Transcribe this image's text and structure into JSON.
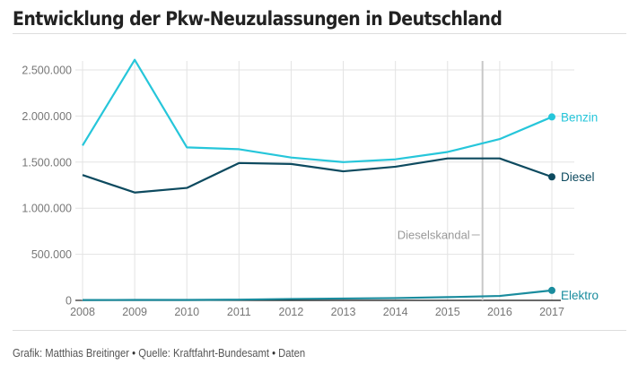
{
  "header": {
    "title": "Entwicklung der Pkw-Neuzulassungen in Deutschland"
  },
  "footer": {
    "grafik_label": "Grafik: Matthias Breitinger",
    "sep1": " • ",
    "quelle_prefix": "Quelle: ",
    "quelle_link": "Kraftfahrt-Bundesamt",
    "sep2": " • ",
    "daten_link": "Daten"
  },
  "chart_data": {
    "type": "line",
    "title": "Entwicklung der Pkw-Neuzulassungen in Deutschland",
    "xlabel": "",
    "ylabel": "",
    "x": [
      2008,
      2009,
      2010,
      2011,
      2012,
      2013,
      2014,
      2015,
      2016,
      2017
    ],
    "x_tick_labels": [
      "2008",
      "2009",
      "2010",
      "2011",
      "2012",
      "2013",
      "2014",
      "2015",
      "2016",
      "2017"
    ],
    "ylim": [
      0,
      2600000
    ],
    "y_ticks": [
      0,
      500000,
      1000000,
      1500000,
      2000000,
      2500000
    ],
    "y_tick_labels": [
      "0",
      "500.000",
      "1.000.000",
      "1.500.000",
      "2.000.000",
      "2.500.000"
    ],
    "grid": true,
    "legend": "inline-right",
    "series": [
      {
        "name": "Benzin",
        "color": "#26c6da",
        "values": [
          1680000,
          2610000,
          1660000,
          1640000,
          1550000,
          1500000,
          1530000,
          1610000,
          1750000,
          1990000
        ]
      },
      {
        "name": "Diesel",
        "color": "#0d4a5f",
        "values": [
          1360000,
          1170000,
          1220000,
          1490000,
          1480000,
          1400000,
          1450000,
          1540000,
          1540000,
          1340000
        ]
      },
      {
        "name": "Elektro",
        "color": "#1a8c9e",
        "values": [
          4000,
          4500,
          5000,
          8000,
          15000,
          20000,
          25000,
          35000,
          48000,
          108000
        ]
      }
    ],
    "annotations": [
      {
        "label": "Dieselskandal",
        "x": 2015.67,
        "type": "vertical-line"
      }
    ]
  }
}
